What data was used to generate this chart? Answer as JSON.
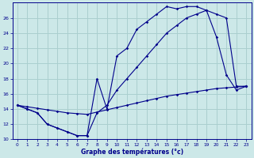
{
  "xlabel": "Graphe des températures (°c)",
  "bg_color": "#cce8e8",
  "grid_color": "#aacfcf",
  "line_color": "#00008b",
  "xlim": [
    -0.5,
    23.5
  ],
  "ylim": [
    10,
    28
  ],
  "yticks": [
    10,
    12,
    14,
    16,
    18,
    20,
    22,
    24,
    26
  ],
  "xticks": [
    0,
    1,
    2,
    3,
    4,
    5,
    6,
    7,
    8,
    9,
    10,
    11,
    12,
    13,
    14,
    15,
    16,
    17,
    18,
    19,
    20,
    21,
    22,
    23
  ],
  "curve1_x": [
    0,
    1,
    2,
    3,
    4,
    5,
    6,
    7,
    8,
    9,
    10,
    11,
    12,
    13,
    14,
    15,
    16,
    17,
    18,
    19,
    20,
    21,
    22,
    23
  ],
  "curve1_y": [
    14.5,
    14.0,
    13.5,
    12.0,
    11.5,
    11.0,
    10.5,
    10.5,
    18.0,
    14.0,
    21.0,
    22.0,
    24.5,
    25.5,
    26.5,
    27.5,
    27.2,
    27.5,
    27.5,
    27.0,
    23.5,
    18.5,
    16.5,
    17.0
  ],
  "curve2_x": [
    0,
    1,
    2,
    3,
    4,
    5,
    6,
    7,
    8,
    9,
    10,
    11,
    12,
    13,
    14,
    15,
    16,
    17,
    18,
    19,
    20,
    21,
    22,
    23
  ],
  "curve2_y": [
    14.5,
    14.0,
    13.5,
    12.0,
    11.5,
    11.0,
    10.5,
    10.5,
    13.5,
    14.5,
    16.5,
    18.0,
    19.5,
    21.0,
    22.5,
    24.0,
    25.0,
    26.0,
    26.5,
    27.0,
    26.5,
    26.0,
    17.0,
    17.0
  ],
  "curve3_x": [
    0,
    1,
    2,
    3,
    4,
    5,
    6,
    7,
    8,
    9,
    10,
    11,
    12,
    13,
    14,
    15,
    16,
    17,
    18,
    19,
    20,
    21,
    22,
    23
  ],
  "curve3_y": [
    14.5,
    14.3,
    14.1,
    13.9,
    13.7,
    13.5,
    13.4,
    13.3,
    13.6,
    13.9,
    14.2,
    14.5,
    14.8,
    15.1,
    15.4,
    15.7,
    15.9,
    16.1,
    16.3,
    16.5,
    16.7,
    16.8,
    16.9,
    17.0
  ]
}
